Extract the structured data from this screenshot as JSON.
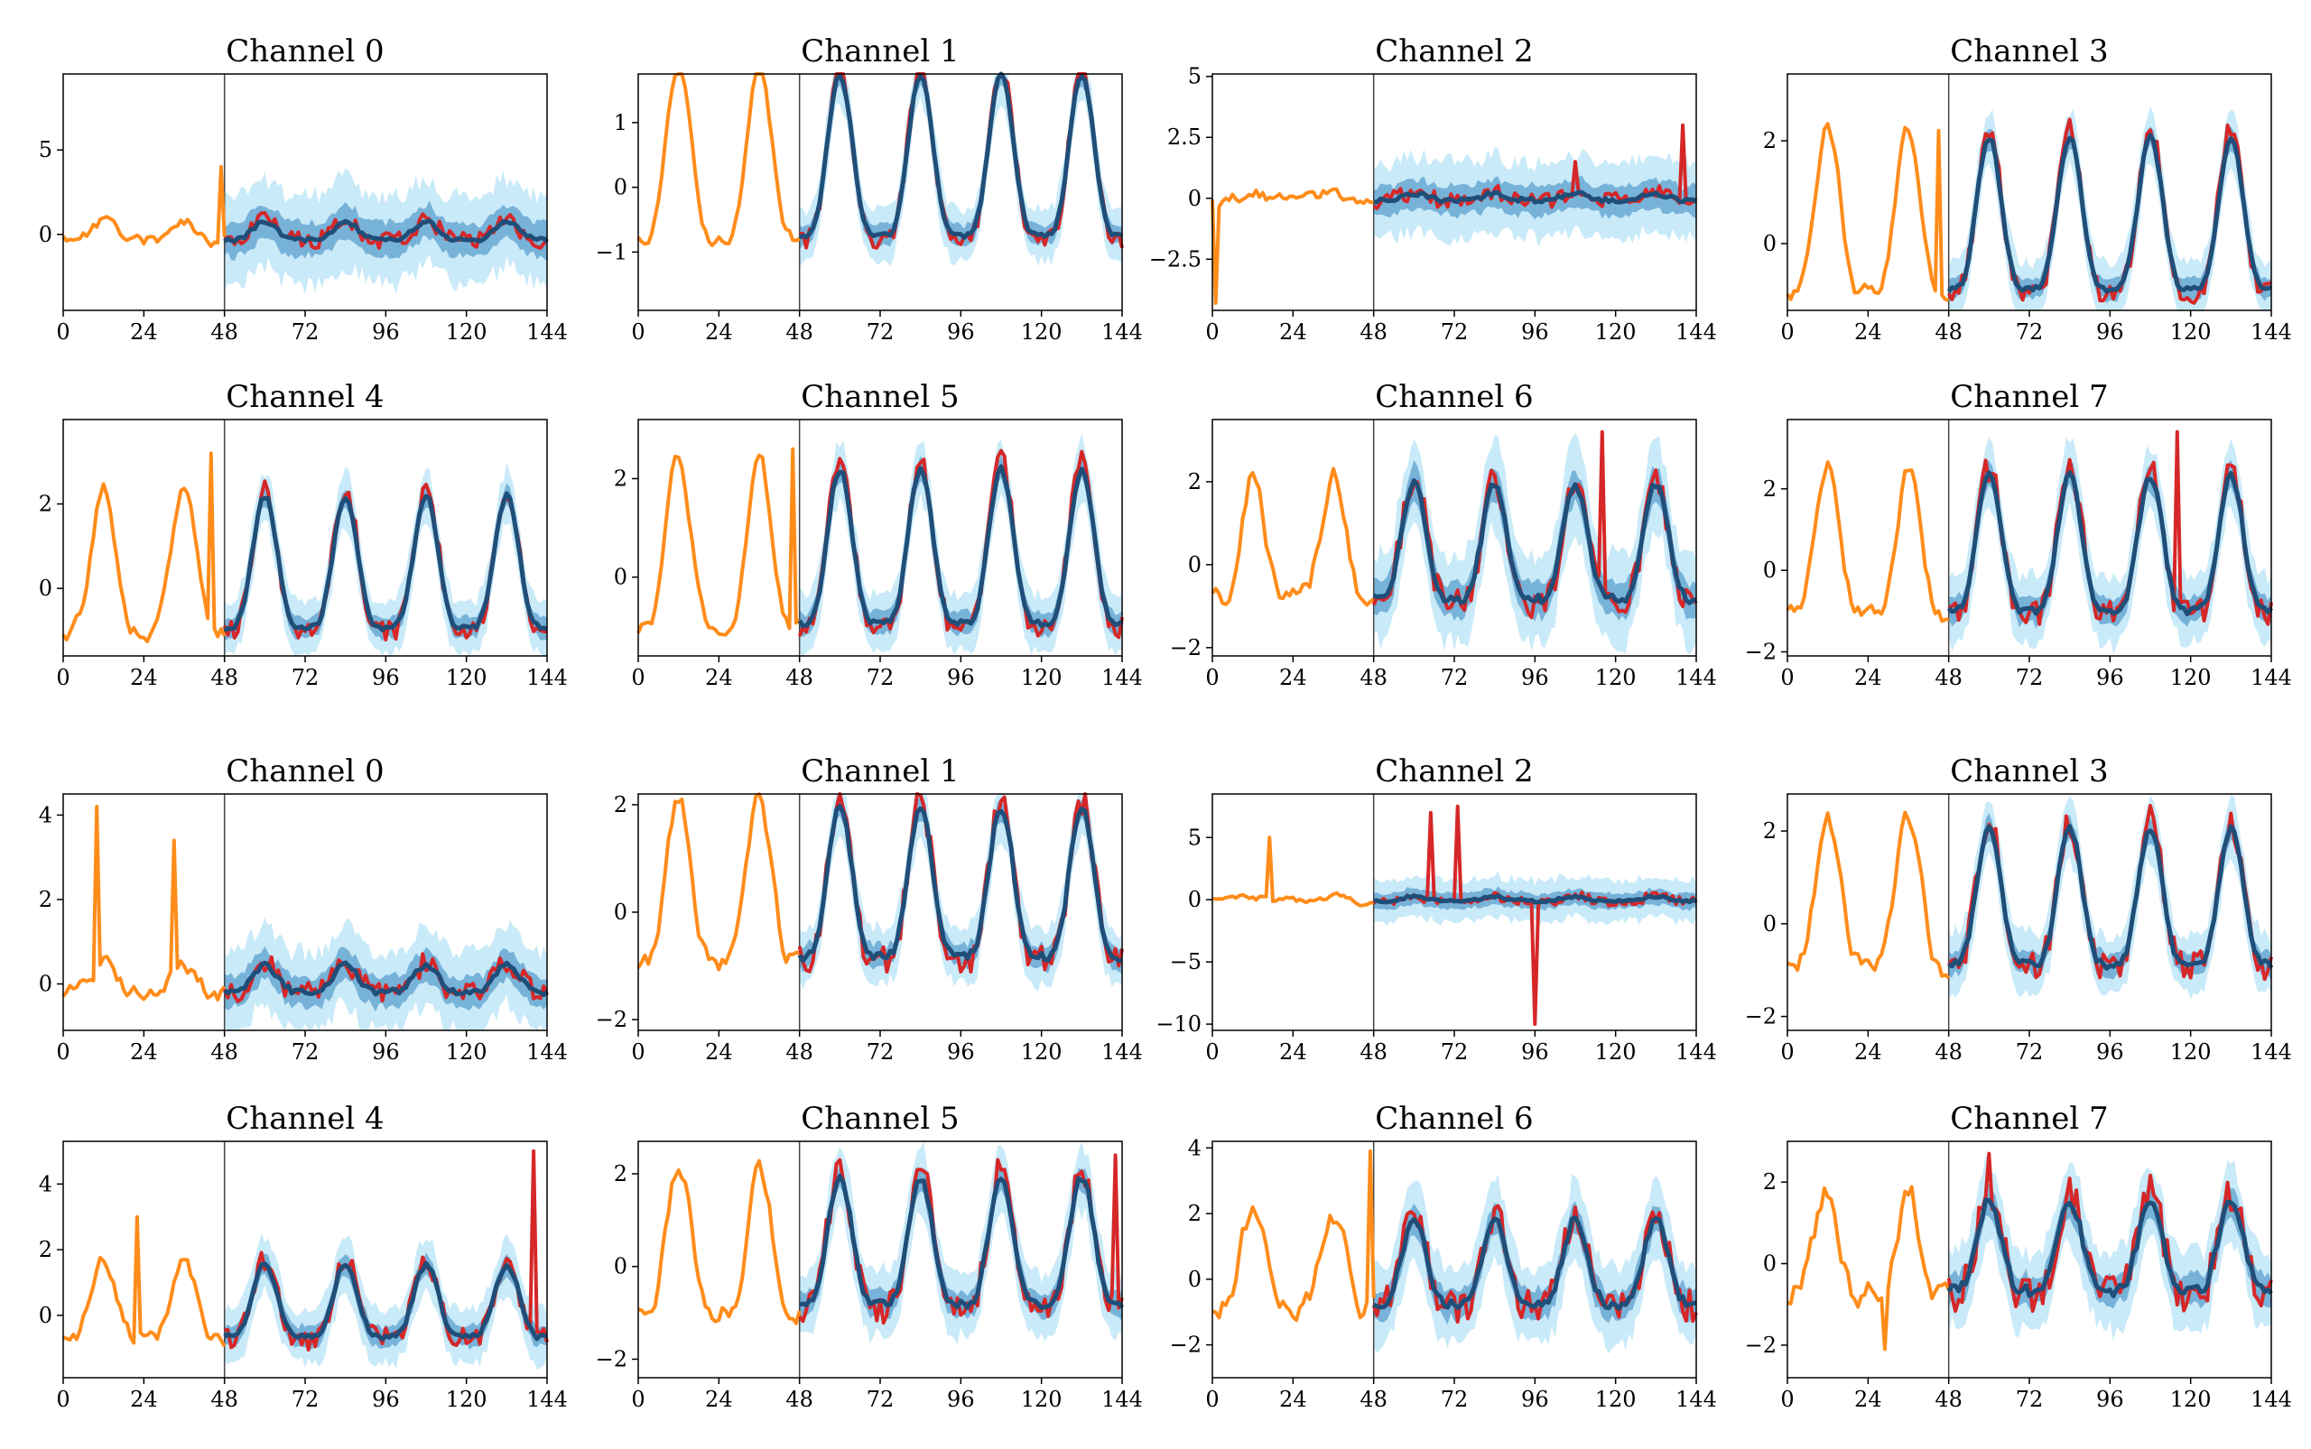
{
  "figure": {
    "colors": {
      "history": "#ff8c1a",
      "ground_truth": "#d62728",
      "forecast_median": "#1f4e79",
      "band_outer": "#bfe6f7",
      "band_inner": "#5b9fcf",
      "divider": "#444444"
    }
  },
  "chart_data": [
    {
      "type": "line",
      "title": "Channel 0",
      "xlim": [
        0,
        144
      ],
      "ylim": [
        -4.5,
        9.5
      ],
      "xticks": [
        0,
        24,
        48,
        72,
        96,
        120,
        144
      ],
      "yticks": [
        0,
        5
      ],
      "divider_x": 48,
      "amp": 0.6,
      "period": 24,
      "noise": 0.45,
      "band": 2.2,
      "spikes": [
        [
          47,
          4.0
        ],
        [
          2,
          -0.3
        ]
      ],
      "seed": 11,
      "series": [
        {
          "name": "history"
        },
        {
          "name": "ground truth"
        },
        {
          "name": "forecast median"
        },
        {
          "name": "interval"
        }
      ]
    },
    {
      "type": "line",
      "title": "Channel 1",
      "xlim": [
        0,
        144
      ],
      "ylim": [
        -1.9,
        1.75
      ],
      "xticks": [
        0,
        24,
        48,
        72,
        96,
        120,
        144
      ],
      "yticks": [
        -1,
        0,
        1
      ],
      "divider_x": 48,
      "amp": 1.35,
      "period": 24,
      "noise": 0.12,
      "band": 0.35,
      "spikes": [],
      "seed": 12,
      "series": [
        {
          "name": "history"
        },
        {
          "name": "ground truth"
        },
        {
          "name": "forecast median"
        },
        {
          "name": "interval"
        }
      ]
    },
    {
      "type": "line",
      "title": "Channel 2",
      "xlim": [
        0,
        144
      ],
      "ylim": [
        -4.6,
        5.1
      ],
      "xticks": [
        0,
        24,
        48,
        72,
        96,
        120,
        144
      ],
      "yticks": [
        -2.5,
        0.0,
        2.5,
        5.0
      ],
      "divider_x": 48,
      "amp": 0.15,
      "period": 24,
      "noise": 0.3,
      "band": 1.3,
      "spikes": [
        [
          1,
          -4.3
        ],
        [
          140,
          3.0
        ],
        [
          108,
          1.5
        ]
      ],
      "seed": 13,
      "series": [
        {
          "name": "history"
        },
        {
          "name": "ground truth"
        },
        {
          "name": "forecast median"
        },
        {
          "name": "interval"
        }
      ]
    },
    {
      "type": "line",
      "title": "Channel 3",
      "xlim": [
        0,
        144
      ],
      "ylim": [
        -1.3,
        3.3
      ],
      "xticks": [
        0,
        24,
        48,
        72,
        96,
        120,
        144
      ],
      "yticks": [
        0,
        2
      ],
      "divider_x": 48,
      "amp": 1.6,
      "period": 24,
      "noise": 0.18,
      "band": 0.45,
      "spikes": [
        [
          45,
          2.2
        ]
      ],
      "seed": 14,
      "series": [
        {
          "name": "history"
        },
        {
          "name": "ground truth"
        },
        {
          "name": "forecast median"
        },
        {
          "name": "interval"
        }
      ]
    },
    {
      "type": "line",
      "title": "Channel 4",
      "xlim": [
        0,
        144
      ],
      "ylim": [
        -1.6,
        4.0
      ],
      "xticks": [
        0,
        24,
        48,
        72,
        96,
        120,
        144
      ],
      "yticks": [
        0,
        2
      ],
      "divider_x": 48,
      "amp": 1.7,
      "period": 24,
      "noise": 0.22,
      "band": 0.55,
      "spikes": [
        [
          44,
          3.2
        ]
      ],
      "seed": 15,
      "series": [
        {
          "name": "history"
        },
        {
          "name": "ground truth"
        },
        {
          "name": "forecast median"
        },
        {
          "name": "interval"
        }
      ]
    },
    {
      "type": "line",
      "title": "Channel 5",
      "xlim": [
        0,
        144
      ],
      "ylim": [
        -1.6,
        3.2
      ],
      "xticks": [
        0,
        24,
        48,
        72,
        96,
        120,
        144
      ],
      "yticks": [
        0,
        2
      ],
      "divider_x": 48,
      "amp": 1.7,
      "period": 24,
      "noise": 0.2,
      "band": 0.5,
      "spikes": [
        [
          46,
          2.6
        ]
      ],
      "seed": 16,
      "series": [
        {
          "name": "history"
        },
        {
          "name": "ground truth"
        },
        {
          "name": "forecast median"
        },
        {
          "name": "interval"
        }
      ]
    },
    {
      "type": "line",
      "title": "Channel 6",
      "xlim": [
        0,
        144
      ],
      "ylim": [
        -2.2,
        3.5
      ],
      "xticks": [
        0,
        24,
        48,
        72,
        96,
        120,
        144
      ],
      "yticks": [
        -2,
        0,
        2
      ],
      "divider_x": 48,
      "amp": 1.5,
      "period": 24,
      "noise": 0.35,
      "band": 0.9,
      "spikes": [
        [
          116,
          3.2
        ]
      ],
      "seed": 17,
      "series": [
        {
          "name": "history"
        },
        {
          "name": "ground truth"
        },
        {
          "name": "forecast median"
        },
        {
          "name": "interval"
        }
      ]
    },
    {
      "type": "line",
      "title": "Channel 7",
      "xlim": [
        0,
        144
      ],
      "ylim": [
        -2.1,
        3.7
      ],
      "xticks": [
        0,
        24,
        48,
        72,
        96,
        120,
        144
      ],
      "yticks": [
        -2,
        0,
        2
      ],
      "divider_x": 48,
      "amp": 1.8,
      "period": 24,
      "noise": 0.3,
      "band": 0.7,
      "spikes": [
        [
          116,
          3.4
        ]
      ],
      "seed": 18,
      "series": [
        {
          "name": "history"
        },
        {
          "name": "ground truth"
        },
        {
          "name": "forecast median"
        },
        {
          "name": "interval"
        }
      ]
    },
    {
      "type": "line",
      "title": "Channel 0",
      "xlim": [
        0,
        144
      ],
      "ylim": [
        -1.1,
        4.5
      ],
      "xticks": [
        0,
        24,
        48,
        72,
        96,
        120,
        144
      ],
      "yticks": [
        0,
        2,
        4
      ],
      "divider_x": 48,
      "amp": 0.35,
      "period": 24,
      "noise": 0.25,
      "band": 0.8,
      "spikes": [
        [
          10,
          4.2
        ],
        [
          33,
          3.4
        ]
      ],
      "seed": 21,
      "series": [
        {
          "name": "history"
        },
        {
          "name": "ground truth"
        },
        {
          "name": "forecast median"
        },
        {
          "name": "interval"
        }
      ]
    },
    {
      "type": "line",
      "title": "Channel 1",
      "xlim": [
        0,
        144
      ],
      "ylim": [
        -2.2,
        2.2
      ],
      "xticks": [
        0,
        24,
        48,
        72,
        96,
        120,
        144
      ],
      "yticks": [
        -2,
        0,
        2
      ],
      "divider_x": 48,
      "amp": 1.5,
      "period": 24,
      "noise": 0.25,
      "band": 0.45,
      "spikes": [],
      "seed": 22,
      "series": [
        {
          "name": "history"
        },
        {
          "name": "ground truth"
        },
        {
          "name": "forecast median"
        },
        {
          "name": "interval"
        }
      ]
    },
    {
      "type": "line",
      "title": "Channel 2",
      "xlim": [
        0,
        144
      ],
      "ylim": [
        -10.5,
        8.5
      ],
      "xticks": [
        0,
        24,
        48,
        72,
        96,
        120,
        144
      ],
      "yticks": [
        -10,
        -5,
        0,
        5
      ],
      "divider_x": 48,
      "amp": 0.2,
      "period": 24,
      "noise": 0.35,
      "band": 1.4,
      "spikes": [
        [
          17,
          5.0
        ],
        [
          65,
          7.0
        ],
        [
          73,
          7.5
        ],
        [
          96,
          -10.0
        ]
      ],
      "seed": 23,
      "series": [
        {
          "name": "history"
        },
        {
          "name": "ground truth"
        },
        {
          "name": "forecast median"
        },
        {
          "name": "interval"
        }
      ]
    },
    {
      "type": "line",
      "title": "Channel 3",
      "xlim": [
        0,
        144
      ],
      "ylim": [
        -2.3,
        2.8
      ],
      "xticks": [
        0,
        24,
        48,
        72,
        96,
        120,
        144
      ],
      "yticks": [
        -2,
        0,
        2
      ],
      "divider_x": 48,
      "amp": 1.6,
      "period": 24,
      "noise": 0.3,
      "band": 0.55,
      "spikes": [],
      "seed": 24,
      "series": [
        {
          "name": "history"
        },
        {
          "name": "ground truth"
        },
        {
          "name": "forecast median"
        },
        {
          "name": "interval"
        }
      ]
    },
    {
      "type": "line",
      "title": "Channel 4",
      "xlim": [
        0,
        144
      ],
      "ylim": [
        -1.9,
        5.3
      ],
      "xticks": [
        0,
        24,
        48,
        72,
        96,
        120,
        144
      ],
      "yticks": [
        0,
        2,
        4
      ],
      "divider_x": 48,
      "amp": 1.2,
      "period": 24,
      "noise": 0.3,
      "band": 0.7,
      "spikes": [
        [
          140,
          5.0
        ],
        [
          22,
          3.0
        ]
      ],
      "seed": 25,
      "series": [
        {
          "name": "history"
        },
        {
          "name": "ground truth"
        },
        {
          "name": "forecast median"
        },
        {
          "name": "interval"
        }
      ]
    },
    {
      "type": "line",
      "title": "Channel 5",
      "xlim": [
        0,
        144
      ],
      "ylim": [
        -2.4,
        2.7
      ],
      "xticks": [
        0,
        24,
        48,
        72,
        96,
        120,
        144
      ],
      "yticks": [
        -2,
        0,
        2
      ],
      "divider_x": 48,
      "amp": 1.5,
      "period": 24,
      "noise": 0.3,
      "band": 0.6,
      "spikes": [
        [
          142,
          2.4
        ]
      ],
      "seed": 26,
      "series": [
        {
          "name": "history"
        },
        {
          "name": "ground truth"
        },
        {
          "name": "forecast median"
        },
        {
          "name": "interval"
        }
      ]
    },
    {
      "type": "line",
      "title": "Channel 6",
      "xlim": [
        0,
        144
      ],
      "ylim": [
        -3.0,
        4.2
      ],
      "xticks": [
        0,
        24,
        48,
        72,
        96,
        120,
        144
      ],
      "yticks": [
        -2,
        0,
        2,
        4
      ],
      "divider_x": 48,
      "amp": 1.4,
      "period": 24,
      "noise": 0.45,
      "band": 1.0,
      "spikes": [
        [
          47,
          3.9
        ]
      ],
      "seed": 27,
      "series": [
        {
          "name": "history"
        },
        {
          "name": "ground truth"
        },
        {
          "name": "forecast median"
        },
        {
          "name": "interval"
        }
      ]
    },
    {
      "type": "line",
      "title": "Channel 7",
      "xlim": [
        0,
        144
      ],
      "ylim": [
        -2.8,
        3.0
      ],
      "xticks": [
        0,
        24,
        48,
        72,
        96,
        120,
        144
      ],
      "yticks": [
        -2,
        0,
        2
      ],
      "divider_x": 48,
      "amp": 1.2,
      "period": 24,
      "noise": 0.45,
      "band": 0.8,
      "spikes": [
        [
          60,
          2.7
        ],
        [
          29,
          -2.1
        ]
      ],
      "seed": 28,
      "series": [
        {
          "name": "history"
        },
        {
          "name": "ground truth"
        },
        {
          "name": "forecast median"
        },
        {
          "name": "interval"
        }
      ]
    }
  ]
}
